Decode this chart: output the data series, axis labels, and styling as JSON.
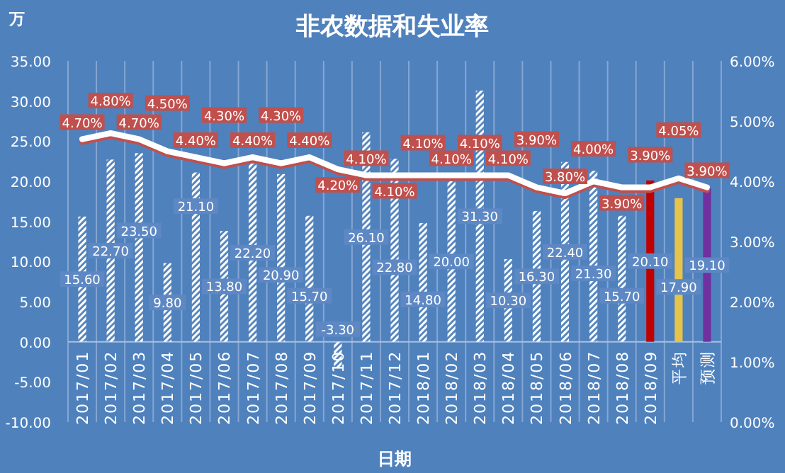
{
  "chart_data": {
    "type": "bar",
    "title": "非农数据和失业率",
    "xlabel": "日期",
    "ylabel": "万",
    "categories": [
      "2017/01",
      "2017/02",
      "2017/03",
      "2017/04",
      "2017/05",
      "2017/06",
      "2017/07",
      "2017/08",
      "2017/09",
      "2017/10",
      "2017/11",
      "2017/12",
      "2018/01",
      "2018/02",
      "2018/03",
      "2018/04",
      "2018/05",
      "2018/06",
      "2018/07",
      "2018/08",
      "2018/09",
      "平均",
      "预测"
    ],
    "series": [
      {
        "type": "bar",
        "colors": [
          "#ffffff",
          "#ffffff",
          "#ffffff",
          "#ffffff",
          "#ffffff",
          "#ffffff",
          "#ffffff",
          "#ffffff",
          "#ffffff",
          "#ffffff",
          "#ffffff",
          "#ffffff",
          "#ffffff",
          "#ffffff",
          "#ffffff",
          "#ffffff",
          "#ffffff",
          "#ffffff",
          "#ffffff",
          "#ffffff",
          "#c00000",
          "#e6c34a",
          "#7030a0"
        ],
        "values": [
          15.6,
          22.7,
          23.5,
          9.8,
          21.1,
          13.8,
          22.2,
          20.9,
          15.7,
          -3.3,
          26.1,
          22.8,
          14.8,
          20.0,
          31.3,
          10.3,
          16.3,
          22.4,
          21.3,
          15.7,
          20.1,
          17.9,
          19.1
        ],
        "value_labels": [
          "15.60",
          "22.70",
          "23.50",
          "9.80",
          "21.10",
          "13.80",
          "22.20",
          "20.90",
          "15.70",
          "-3.30",
          "26.10",
          "22.80",
          "14.80",
          "20.00",
          "31.30",
          "10.30",
          "16.30",
          "22.40",
          "21.30",
          "15.70",
          "20.10",
          "17.90",
          "19.10"
        ]
      },
      {
        "type": "line",
        "axis": "y2",
        "color": "#ffffff",
        "values": [
          4.7,
          4.8,
          4.7,
          4.5,
          4.4,
          4.3,
          4.4,
          4.3,
          4.4,
          4.2,
          4.1,
          4.1,
          4.1,
          4.1,
          4.1,
          4.1,
          3.9,
          3.8,
          4.0,
          3.9,
          3.9,
          4.05,
          3.9
        ],
        "value_labels": [
          "4.70%",
          "4.80%",
          "4.70%",
          "4.50%",
          "4.40%",
          "4.30%",
          "4.40%",
          "4.30%",
          "4.40%",
          "4.20%",
          "4.10%",
          "4.10%",
          "4.10%",
          "4.10%",
          "4.10%",
          "4.10%",
          "3.90%",
          "3.80%",
          "4.00%",
          "3.90%",
          "3.90%",
          "4.05%",
          "3.90%"
        ]
      }
    ],
    "ylim": [
      -10,
      35
    ],
    "yticks": [
      {
        "value": -10,
        "label": "-10.00"
      },
      {
        "value": -5,
        "label": "-5.00"
      },
      {
        "value": 0,
        "label": "0.00"
      },
      {
        "value": 5,
        "label": "5.00"
      },
      {
        "value": 10,
        "label": "10.00"
      },
      {
        "value": 15,
        "label": "15.00"
      },
      {
        "value": 20,
        "label": "20.00"
      },
      {
        "value": 25,
        "label": "25.00"
      },
      {
        "value": 30,
        "label": "30.00"
      },
      {
        "value": 35,
        "label": "35.00"
      }
    ],
    "y2lim": [
      0,
      6
    ],
    "y2ticks": [
      {
        "value": 0,
        "label": "0.00%"
      },
      {
        "value": 1,
        "label": "1.00%"
      },
      {
        "value": 2,
        "label": "2.00%"
      },
      {
        "value": 3,
        "label": "3.00%"
      },
      {
        "value": 4,
        "label": "4.00%"
      },
      {
        "value": 5,
        "label": "5.00%"
      },
      {
        "value": 6,
        "label": "6.00%"
      }
    ],
    "grid": "x"
  }
}
